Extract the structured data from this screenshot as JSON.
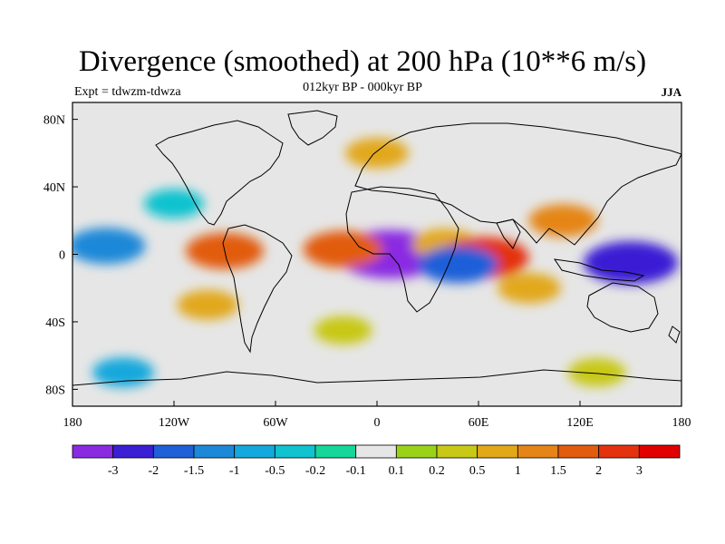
{
  "title": "Divergence (smoothed) at 200 hPa (10**6 m/s)",
  "subtitle": "012kyr BP - 000kyr BP",
  "left_string": "Expt = tdwzm-tdwza",
  "right_string": "JJA",
  "chart_data": {
    "type": "heatmap",
    "projection": "cylindrical-equidistant",
    "xlim": [
      -180,
      180
    ],
    "ylim": [
      -90,
      90
    ],
    "x_ticks": [
      {
        "value": -180,
        "label": "180"
      },
      {
        "value": -120,
        "label": "120W"
      },
      {
        "value": -60,
        "label": "60W"
      },
      {
        "value": 0,
        "label": "0"
      },
      {
        "value": 60,
        "label": "60E"
      },
      {
        "value": 120,
        "label": "120E"
      },
      {
        "value": 180,
        "label": "180"
      }
    ],
    "y_ticks": [
      {
        "value": 80,
        "label": "80N"
      },
      {
        "value": 40,
        "label": "40N"
      },
      {
        "value": 0,
        "label": "0"
      },
      {
        "value": -40,
        "label": "40S"
      },
      {
        "value": -80,
        "label": "80S"
      }
    ],
    "colorbar": {
      "labels": [
        "-3",
        "-2",
        "-1.5",
        "-1",
        "-0.5",
        "-0.2",
        "-0.1",
        "0.1",
        "0.2",
        "0.5",
        "1",
        "1.5",
        "2",
        "3"
      ],
      "colors": [
        "#8a2be2",
        "#3a1fd4",
        "#1f5fd8",
        "#1e88d8",
        "#14a8dc",
        "#10c3cf",
        "#16d69a",
        "#e6e6e6",
        "#9ad21a",
        "#c8c817",
        "#e2a81a",
        "#e58517",
        "#e25c10",
        "#e43210",
        "#e00000"
      ]
    },
    "regions": [
      {
        "lon": 8,
        "lat": 0,
        "value": -3.2
      },
      {
        "lon": -20,
        "lat": 3,
        "value": 1.6
      },
      {
        "lon": 40,
        "lat": 6,
        "value": 0.8
      },
      {
        "lon": 63,
        "lat": -2,
        "value": 2.2
      },
      {
        "lon": 48,
        "lat": -6,
        "value": -1.6
      },
      {
        "lon": 150,
        "lat": -5,
        "value": -2.4
      },
      {
        "lon": -90,
        "lat": 2,
        "value": 1.5
      },
      {
        "lon": -160,
        "lat": 5,
        "value": -1.5
      },
      {
        "lon": 110,
        "lat": 20,
        "value": 1.0
      },
      {
        "lon": -120,
        "lat": 30,
        "value": -0.5
      },
      {
        "lon": -100,
        "lat": -30,
        "value": 0.6
      },
      {
        "lon": 0,
        "lat": 60,
        "value": 0.7
      },
      {
        "lon": 90,
        "lat": -20,
        "value": 0.7
      },
      {
        "lon": -20,
        "lat": -45,
        "value": 0.4
      },
      {
        "lon": 130,
        "lat": -70,
        "value": 0.4
      },
      {
        "lon": -150,
        "lat": -70,
        "value": -0.6
      }
    ]
  }
}
